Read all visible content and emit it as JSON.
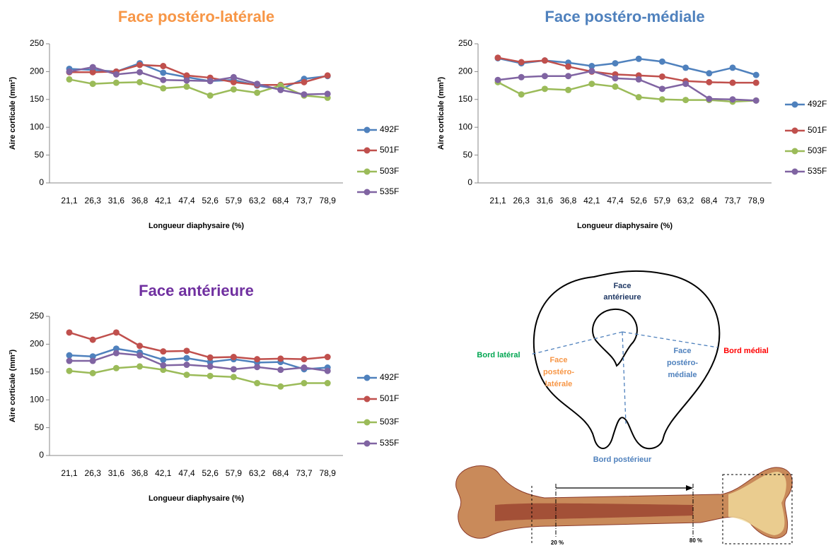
{
  "chart_data": [
    {
      "type": "line",
      "title": "Face postéro-latérale",
      "title_color": "#f79646",
      "x_label": "Longueur diaphysaire  (%)",
      "y_label": "Aire corticale (mm²)",
      "categories": [
        "21,1",
        "26,3",
        "31,6",
        "36,8",
        "42,1",
        "47,4",
        "52,6",
        "57,9",
        "63,2",
        "68,4",
        "73,7",
        "78,9"
      ],
      "ylim": [
        0,
        250
      ],
      "yticks": [
        0,
        50,
        100,
        150,
        200,
        250
      ],
      "legend": "right",
      "series": [
        {
          "name": "492F",
          "color": "#4f81bd",
          "values": [
            205,
            203,
            200,
            215,
            198,
            190,
            183,
            185,
            175,
            168,
            187,
            192
          ]
        },
        {
          "name": "501F",
          "color": "#c0504d",
          "values": [
            199,
            199,
            200,
            212,
            210,
            193,
            189,
            181,
            176,
            176,
            181,
            193
          ]
        },
        {
          "name": "503F",
          "color": "#9bbb59",
          "values": [
            186,
            178,
            180,
            181,
            170,
            173,
            157,
            168,
            162,
            175,
            157,
            153
          ]
        },
        {
          "name": "535F",
          "color": "#8064a2",
          "values": [
            200,
            208,
            195,
            199,
            185,
            184,
            183,
            190,
            178,
            167,
            159,
            160
          ]
        }
      ]
    },
    {
      "type": "line",
      "title": "Face postéro-médiale",
      "title_color": "#4f81bd",
      "x_label": "Longueur diaphysaire  (%)",
      "y_label": "Aire corticale (mm²)",
      "categories": [
        "21,1",
        "26,3",
        "31,6",
        "36,8",
        "42,1",
        "47,4",
        "52,6",
        "57,9",
        "63,2",
        "68,4",
        "73,7",
        "78,9"
      ],
      "ylim": [
        0,
        250
      ],
      "yticks": [
        0,
        50,
        100,
        150,
        200,
        250
      ],
      "legend": "right",
      "series": [
        {
          "name": "492F",
          "color": "#4f81bd",
          "values": [
            224,
            215,
            220,
            216,
            210,
            215,
            223,
            218,
            207,
            197,
            207,
            194
          ]
        },
        {
          "name": "501F",
          "color": "#c0504d",
          "values": [
            225,
            217,
            220,
            209,
            200,
            195,
            193,
            191,
            183,
            181,
            180,
            180
          ]
        },
        {
          "name": "503F",
          "color": "#9bbb59",
          "values": [
            181,
            159,
            169,
            167,
            178,
            173,
            154,
            150,
            149,
            149,
            146,
            148
          ]
        },
        {
          "name": "535F",
          "color": "#8064a2",
          "values": [
            185,
            190,
            192,
            192,
            201,
            188,
            186,
            169,
            178,
            151,
            150,
            148
          ]
        }
      ]
    },
    {
      "type": "line",
      "title": "Face antérieure",
      "title_color": "#7030a0",
      "x_label": "Longueur diaphysaire  (%)",
      "y_label": "Aire corticale (mm²)",
      "categories": [
        "21,1",
        "26,3",
        "31,6",
        "36,8",
        "42,1",
        "47,4",
        "52,6",
        "57,9",
        "63,2",
        "68,4",
        "73,7",
        "78,9"
      ],
      "ylim": [
        0,
        250
      ],
      "yticks": [
        0,
        50,
        100,
        150,
        200,
        250
      ],
      "legend": "right",
      "series": [
        {
          "name": "492F",
          "color": "#4f81bd",
          "values": [
            180,
            178,
            192,
            185,
            172,
            175,
            168,
            173,
            167,
            168,
            155,
            158
          ]
        },
        {
          "name": "501F",
          "color": "#c0504d",
          "values": [
            221,
            208,
            221,
            197,
            187,
            188,
            176,
            177,
            173,
            174,
            173,
            177
          ]
        },
        {
          "name": "503F",
          "color": "#9bbb59",
          "values": [
            152,
            148,
            157,
            160,
            154,
            145,
            143,
            141,
            130,
            124,
            130,
            130
          ]
        },
        {
          "name": "535F",
          "color": "#8064a2",
          "values": [
            170,
            170,
            184,
            180,
            162,
            163,
            160,
            155,
            159,
            154,
            158,
            152
          ]
        }
      ]
    }
  ],
  "diagram": {
    "face_anterieure": [
      "Face",
      "antérieure"
    ],
    "bord_lateral": "Bord latéral",
    "face_postero_laterale": [
      "Face",
      "postéro-",
      "latérale"
    ],
    "face_postero_mediale": [
      "Face",
      "postéro-",
      "médiale"
    ],
    "bord_medial": "Bord médial",
    "bord_posterieur": "Bord postérieur",
    "mark_20": "20 %",
    "mark_80": "80 %"
  }
}
